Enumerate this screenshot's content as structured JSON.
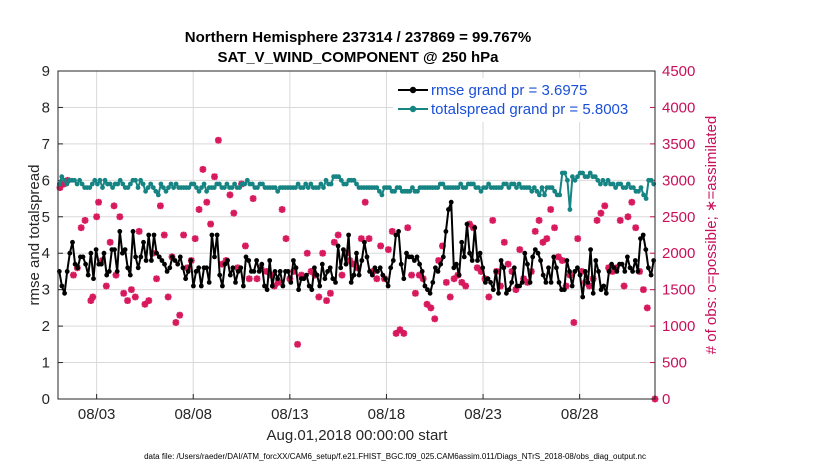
{
  "chart_data": {
    "type": "line",
    "title_line1": "Northern Hemisphere 237314 / 237869 = 99.767%",
    "title_line2": "SAT_V_WIND_COMPONENT @ 250 hPa",
    "xlabel": "Aug.01,2018 00:00:00 start",
    "ylabel_left": "rmse and totalspread",
    "ylabel_right": "# of obs: o=possible; ∗=assimilated",
    "ylim_left": [
      0,
      9
    ],
    "ylim_right": [
      0,
      4500
    ],
    "xlim_days": [
      1.0,
      31.9
    ],
    "yticks_left": [
      "0",
      "1",
      "2",
      "3",
      "4",
      "5",
      "6",
      "7",
      "8",
      "9"
    ],
    "yticks_right": [
      "0",
      "500",
      "1000",
      "1500",
      "2000",
      "2500",
      "3000",
      "3500",
      "4000",
      "4500"
    ],
    "xticks": [
      {
        "day": 3,
        "label": "08/03"
      },
      {
        "day": 8,
        "label": "08/08"
      },
      {
        "day": 13,
        "label": "08/13"
      },
      {
        "day": 18,
        "label": "08/18"
      },
      {
        "day": 23,
        "label": "08/23"
      },
      {
        "day": 28,
        "label": "08/28"
      }
    ],
    "grid": true,
    "legend_position": "top-right",
    "series": [
      {
        "name": "rmse grand pr = 3.6975",
        "color": "#000000",
        "axis": "left",
        "values": [
          3.5,
          3.1,
          2.9,
          3.5,
          4.0,
          4.3,
          3.7,
          3.6,
          3.9,
          3.9,
          3.7,
          3.4,
          4.0,
          3.3,
          4.1,
          3.7,
          3.7,
          4.0,
          3.4,
          3.5,
          4.1,
          4.1,
          3.5,
          4.6,
          4.0,
          4.1,
          3.6,
          3.4,
          4.6,
          3.9,
          3.6,
          3.9,
          4.3,
          3.8,
          4.5,
          3.8,
          4.5,
          4.0,
          3.9,
          3.8,
          3.7,
          3.5,
          3.6,
          3.9,
          3.8,
          3.7,
          3.9,
          3.6,
          3.3,
          3.5,
          3.8,
          3.1,
          3.5,
          3.6,
          3.1,
          3.6,
          3.6,
          3.2,
          4.5,
          3.9,
          4.5,
          3.4,
          3.1,
          3.7,
          3.8,
          3.4,
          3.6,
          3.2,
          3.5,
          3.6,
          3.1,
          3.9,
          3.8,
          3.5,
          3.5,
          3.8,
          3.5,
          3.7,
          3.1,
          3.0,
          3.8,
          3.1,
          3.5,
          3.3,
          3.5,
          3.1,
          3.5,
          3.5,
          3.2,
          3.8,
          3.6,
          3.0,
          3.3,
          3.3,
          3.4,
          3.1,
          3.0,
          3.6,
          3.4,
          3.1,
          3.7,
          3.3,
          3.5,
          3.6,
          3.3,
          3.2,
          4.2,
          3.6,
          4.1,
          3.7,
          4.5,
          3.2,
          3.4,
          4.0,
          3.4,
          3.8,
          4.3,
          3.9,
          3.5,
          3.4,
          3.6,
          3.5,
          3.6,
          3.4,
          3.3,
          3.1,
          3.6,
          3.8,
          4.5,
          4.6,
          3.7,
          3.3,
          4.0,
          3.9,
          3.9,
          3.8,
          3.9,
          3.7,
          3.5,
          3.1,
          3.0,
          2.9,
          3.2,
          3.6,
          3.5,
          3.7,
          3.9,
          4.6,
          5.2,
          5.4,
          3.6,
          3.7,
          3.4,
          4.3,
          3.9,
          4.8,
          4.0,
          3.8,
          4.7,
          3.8,
          4.0,
          3.6,
          3.2,
          3.3,
          3.2,
          3.0,
          3.5,
          2.9,
          3.8,
          3.6,
          2.9,
          3.0,
          3.2,
          3.6,
          3.1,
          3.1,
          3.2,
          4.0,
          3.7,
          3.2,
          3.9,
          4.1,
          4.0,
          3.8,
          3.4,
          3.2,
          3.6,
          3.2,
          3.9,
          3.6,
          3.2,
          3.0,
          3.0,
          3.8,
          3.5,
          3.1,
          3.5,
          3.6,
          3.4,
          2.8,
          3.5,
          3.2,
          4.1,
          2.9,
          3.8,
          3.5,
          3.0,
          3.1,
          2.9,
          3.5,
          3.7,
          3.6,
          3.5,
          3.7,
          3.7,
          3.5,
          3.9,
          3.6,
          3.5,
          3.8,
          3.5,
          4.4,
          4.5,
          4.1,
          3.6,
          3.4,
          3.8
        ]
      },
      {
        "name": "totalspread grand pr = 5.8003",
        "color": "#178484",
        "axis": "left",
        "values": [
          5.9,
          6.1,
          6.0,
          5.9,
          6.0,
          6.0,
          6.0,
          5.9,
          6.0,
          5.9,
          5.8,
          5.8,
          5.8,
          5.9,
          6.0,
          5.9,
          6.0,
          5.8,
          6.0,
          5.9,
          5.9,
          5.8,
          5.9,
          5.9,
          6.0,
          5.9,
          5.8,
          5.8,
          5.9,
          6.0,
          6.0,
          5.8,
          6.0,
          5.9,
          5.7,
          5.8,
          5.9,
          5.8,
          5.7,
          5.6,
          5.9,
          5.8,
          5.7,
          5.8,
          5.9,
          5.8,
          5.9,
          5.8,
          5.8,
          5.8,
          5.8,
          5.8,
          5.9,
          5.9,
          5.8,
          5.7,
          5.8,
          5.9,
          5.7,
          5.8,
          5.8,
          5.8,
          5.9,
          5.9,
          5.8,
          5.8,
          5.9,
          5.8,
          5.8,
          5.9,
          5.8,
          5.8,
          5.9,
          5.9,
          6.0,
          5.9,
          5.9,
          5.8,
          5.8,
          5.9,
          5.9,
          5.8,
          5.8,
          5.8,
          5.8,
          5.8,
          5.7,
          5.8,
          5.8,
          5.8,
          5.8,
          5.8,
          5.8,
          5.8,
          5.9,
          5.8,
          5.8,
          5.9,
          5.8,
          5.9,
          5.8,
          5.8,
          5.8,
          5.9,
          5.8,
          6.0,
          5.9,
          5.9,
          6.1,
          6.1,
          6.1,
          6.0,
          5.9,
          5.9,
          6.0,
          6.0,
          6.0,
          5.9,
          5.8,
          5.8,
          5.8,
          5.8,
          5.8,
          5.8,
          5.8,
          5.8,
          5.7,
          5.6,
          5.8,
          5.8,
          5.8,
          5.7,
          5.7,
          5.8,
          5.8,
          5.7,
          5.7,
          5.7,
          5.7,
          5.8,
          5.7,
          5.7,
          5.8,
          5.8,
          5.8,
          5.8,
          5.8,
          5.8,
          5.8,
          5.8,
          5.9,
          5.9,
          5.8,
          5.8,
          5.8,
          5.8,
          5.8,
          5.8,
          5.9,
          5.8,
          5.8,
          5.9,
          5.9,
          5.9,
          5.8,
          5.8,
          5.7,
          5.8,
          5.8,
          5.9,
          5.8,
          5.8,
          5.8,
          5.8,
          5.8,
          5.9,
          5.9,
          5.8,
          5.9,
          5.9,
          5.8,
          5.9,
          5.8,
          5.8,
          5.8,
          5.8,
          5.7,
          5.8,
          5.7,
          5.6,
          5.8,
          5.6,
          5.8,
          5.8,
          5.8,
          5.7,
          5.6,
          5.6,
          6.2,
          6.2,
          6.0,
          5.2,
          6.1,
          6.0,
          6.1,
          6.2,
          6.2,
          6.1,
          6.1,
          6.2,
          6.1,
          6.1,
          6.0,
          5.9,
          6.0,
          5.9,
          6.0,
          5.9,
          5.9,
          5.8,
          5.9,
          5.9,
          5.8,
          5.8,
          5.9,
          5.8,
          5.8,
          5.7,
          5.7,
          5.8,
          5.6,
          5.5,
          6.0,
          6.0,
          5.9
        ]
      }
    ],
    "obs": {
      "name": "# of obs",
      "color": "#d8195d",
      "axis": "right",
      "points": [
        {
          "day": 1.1,
          "value": 2900
        },
        {
          "day": 1.3,
          "value": 2950
        },
        {
          "day": 1.5,
          "value": 3000
        },
        {
          "day": 1.8,
          "value": 1700
        },
        {
          "day": 2.0,
          "value": 1800
        },
        {
          "day": 2.2,
          "value": 2350
        },
        {
          "day": 2.4,
          "value": 2450
        },
        {
          "day": 2.7,
          "value": 1350
        },
        {
          "day": 2.8,
          "value": 1400
        },
        {
          "day": 3.0,
          "value": 2500
        },
        {
          "day": 3.1,
          "value": 2700
        },
        {
          "day": 3.3,
          "value": 1900
        },
        {
          "day": 3.5,
          "value": 1550
        },
        {
          "day": 3.7,
          "value": 2150
        },
        {
          "day": 3.9,
          "value": 2650
        },
        {
          "day": 4.0,
          "value": 1700
        },
        {
          "day": 4.2,
          "value": 2500
        },
        {
          "day": 4.4,
          "value": 1450
        },
        {
          "day": 4.6,
          "value": 1350
        },
        {
          "day": 4.8,
          "value": 1500
        },
        {
          "day": 5.0,
          "value": 1400
        },
        {
          "day": 5.2,
          "value": 2300
        },
        {
          "day": 5.5,
          "value": 1300
        },
        {
          "day": 5.7,
          "value": 1350
        },
        {
          "day": 5.9,
          "value": 2000
        },
        {
          "day": 6.1,
          "value": 1650
        },
        {
          "day": 6.3,
          "value": 2650
        },
        {
          "day": 6.5,
          "value": 2250
        },
        {
          "day": 6.7,
          "value": 1400
        },
        {
          "day": 6.9,
          "value": 1950
        },
        {
          "day": 7.1,
          "value": 1050
        },
        {
          "day": 7.3,
          "value": 1150
        },
        {
          "day": 7.5,
          "value": 2250
        },
        {
          "day": 7.7,
          "value": 1800
        },
        {
          "day": 7.9,
          "value": 1900
        },
        {
          "day": 8.1,
          "value": 2200
        },
        {
          "day": 8.3,
          "value": 2600
        },
        {
          "day": 8.5,
          "value": 3150
        },
        {
          "day": 8.7,
          "value": 2700
        },
        {
          "day": 8.9,
          "value": 2400
        },
        {
          "day": 9.1,
          "value": 3050
        },
        {
          "day": 9.3,
          "value": 3550
        },
        {
          "day": 9.5,
          "value": 1850
        },
        {
          "day": 9.7,
          "value": 1900
        },
        {
          "day": 9.9,
          "value": 2800
        },
        {
          "day": 10.1,
          "value": 2550
        },
        {
          "day": 10.3,
          "value": 1800
        },
        {
          "day": 10.5,
          "value": 2950
        },
        {
          "day": 10.7,
          "value": 2100
        },
        {
          "day": 10.9,
          "value": 1650
        },
        {
          "day": 11.1,
          "value": 2750
        },
        {
          "day": 11.3,
          "value": 1650
        },
        {
          "day": 11.5,
          "value": 1800
        },
        {
          "day": 11.8,
          "value": 1750
        },
        {
          "day": 12.0,
          "value": 1700
        },
        {
          "day": 12.2,
          "value": 1550
        },
        {
          "day": 12.4,
          "value": 1600
        },
        {
          "day": 12.6,
          "value": 2600
        },
        {
          "day": 12.8,
          "value": 2200
        },
        {
          "day": 13.0,
          "value": 1650
        },
        {
          "day": 13.2,
          "value": 1750
        },
        {
          "day": 13.4,
          "value": 750
        },
        {
          "day": 13.6,
          "value": 1700
        },
        {
          "day": 13.9,
          "value": 2000
        },
        {
          "day": 14.1,
          "value": 1750
        },
        {
          "day": 14.3,
          "value": 1700
        },
        {
          "day": 14.5,
          "value": 1400
        },
        {
          "day": 14.7,
          "value": 2000
        },
        {
          "day": 14.9,
          "value": 1350
        },
        {
          "day": 15.1,
          "value": 1450
        },
        {
          "day": 15.3,
          "value": 2150
        },
        {
          "day": 15.5,
          "value": 2250
        },
        {
          "day": 15.7,
          "value": 1700
        },
        {
          "day": 15.9,
          "value": 2000
        },
        {
          "day": 16.1,
          "value": 1900
        },
        {
          "day": 16.3,
          "value": 1850
        },
        {
          "day": 16.5,
          "value": 1800
        },
        {
          "day": 16.7,
          "value": 2200
        },
        {
          "day": 16.9,
          "value": 2700
        },
        {
          "day": 17.1,
          "value": 2200
        },
        {
          "day": 17.3,
          "value": 1750
        },
        {
          "day": 17.5,
          "value": 1650
        },
        {
          "day": 17.7,
          "value": 2100
        },
        {
          "day": 17.9,
          "value": 1650
        },
        {
          "day": 18.1,
          "value": 2050
        },
        {
          "day": 18.3,
          "value": 2300
        },
        {
          "day": 18.5,
          "value": 900
        },
        {
          "day": 18.7,
          "value": 950
        },
        {
          "day": 18.9,
          "value": 900
        },
        {
          "day": 19.1,
          "value": 2350
        },
        {
          "day": 19.3,
          "value": 1700
        },
        {
          "day": 19.5,
          "value": 1450
        },
        {
          "day": 19.7,
          "value": 1700
        },
        {
          "day": 19.9,
          "value": 1650
        },
        {
          "day": 20.1,
          "value": 1300
        },
        {
          "day": 20.3,
          "value": 1250
        },
        {
          "day": 20.5,
          "value": 1100
        },
        {
          "day": 20.7,
          "value": 1900
        },
        {
          "day": 20.9,
          "value": 2100
        },
        {
          "day": 21.1,
          "value": 1600
        },
        {
          "day": 21.3,
          "value": 1400
        },
        {
          "day": 21.5,
          "value": 1650
        },
        {
          "day": 21.7,
          "value": 1700
        },
        {
          "day": 21.9,
          "value": 1600
        },
        {
          "day": 22.1,
          "value": 1550
        },
        {
          "day": 22.3,
          "value": 2400
        },
        {
          "day": 22.5,
          "value": 2350
        },
        {
          "day": 22.7,
          "value": 1800
        },
        {
          "day": 22.9,
          "value": 1750
        },
        {
          "day": 23.1,
          "value": 1650
        },
        {
          "day": 23.3,
          "value": 1400
        },
        {
          "day": 23.5,
          "value": 2450
        },
        {
          "day": 23.7,
          "value": 1750
        },
        {
          "day": 23.9,
          "value": 1550
        },
        {
          "day": 24.1,
          "value": 2150
        },
        {
          "day": 24.3,
          "value": 1850
        },
        {
          "day": 24.5,
          "value": 1750
        },
        {
          "day": 24.7,
          "value": 1500
        },
        {
          "day": 24.9,
          "value": 2050
        },
        {
          "day": 25.1,
          "value": 1650
        },
        {
          "day": 25.3,
          "value": 1600
        },
        {
          "day": 25.5,
          "value": 1750
        },
        {
          "day": 25.7,
          "value": 2300
        },
        {
          "day": 25.9,
          "value": 2450
        },
        {
          "day": 26.1,
          "value": 2150
        },
        {
          "day": 26.3,
          "value": 2200
        },
        {
          "day": 26.5,
          "value": 2600
        },
        {
          "day": 26.7,
          "value": 2350
        },
        {
          "day": 26.9,
          "value": 1950
        },
        {
          "day": 27.1,
          "value": 1900
        },
        {
          "day": 27.3,
          "value": 1550
        },
        {
          "day": 27.5,
          "value": 1700
        },
        {
          "day": 27.7,
          "value": 1050
        },
        {
          "day": 27.9,
          "value": 2200
        },
        {
          "day": 28.1,
          "value": 1750
        },
        {
          "day": 28.3,
          "value": 1600
        },
        {
          "day": 28.5,
          "value": 1550
        },
        {
          "day": 28.7,
          "value": 1650
        },
        {
          "day": 28.9,
          "value": 2450
        },
        {
          "day": 29.1,
          "value": 2550
        },
        {
          "day": 29.3,
          "value": 2650
        },
        {
          "day": 29.5,
          "value": 1800
        },
        {
          "day": 29.7,
          "value": 1750
        },
        {
          "day": 29.9,
          "value": 1800
        },
        {
          "day": 30.1,
          "value": 2450
        },
        {
          "day": 30.3,
          "value": 1550
        },
        {
          "day": 30.5,
          "value": 2500
        },
        {
          "day": 30.7,
          "value": 2700
        },
        {
          "day": 30.9,
          "value": 2350
        },
        {
          "day": 31.1,
          "value": 1750
        },
        {
          "day": 31.3,
          "value": 1500
        },
        {
          "day": 31.5,
          "value": 1250
        },
        {
          "day": 31.9,
          "value": 0
        }
      ]
    }
  },
  "footer": "data file: /Users/raeder/DAI/ATM_forcXX/CAM6_setup/f.e21.FHIST_BGC.f09_025.CAM6assim.011/Diags_NTrS_2018-08/obs_diag_output.nc"
}
